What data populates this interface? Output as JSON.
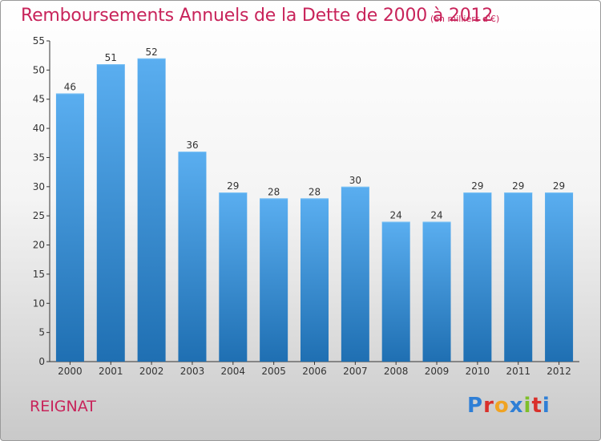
{
  "header": {
    "title": "Remboursements Annuels de la Dette de 2000 à 2012",
    "unit": "(en milliers d'€)"
  },
  "footer": {
    "commune": "REIGNAT",
    "logo_text": "Proxiti"
  },
  "colors": {
    "bar_light": "#5aaef0",
    "bar_dark": "#1f6fb2",
    "title": "#c8235a",
    "axis": "#333333",
    "logo_letters": [
      "#2f7fd6",
      "#d9302b",
      "#f0a322",
      "#2f7fd6",
      "#7fbf2a",
      "#d9302b",
      "#2f7fd6"
    ]
  },
  "chart_data": {
    "type": "bar",
    "categories": [
      "2000",
      "2001",
      "2002",
      "2003",
      "2004",
      "2005",
      "2006",
      "2007",
      "2008",
      "2009",
      "2010",
      "2011",
      "2012"
    ],
    "values": [
      46,
      51,
      52,
      36,
      29,
      28,
      28,
      30,
      24,
      24,
      29,
      29,
      29
    ],
    "ylim": [
      0,
      55
    ],
    "yticks": [
      0,
      5,
      10,
      15,
      20,
      25,
      30,
      35,
      40,
      45,
      50,
      55
    ],
    "grid": false,
    "data_labels": true
  }
}
